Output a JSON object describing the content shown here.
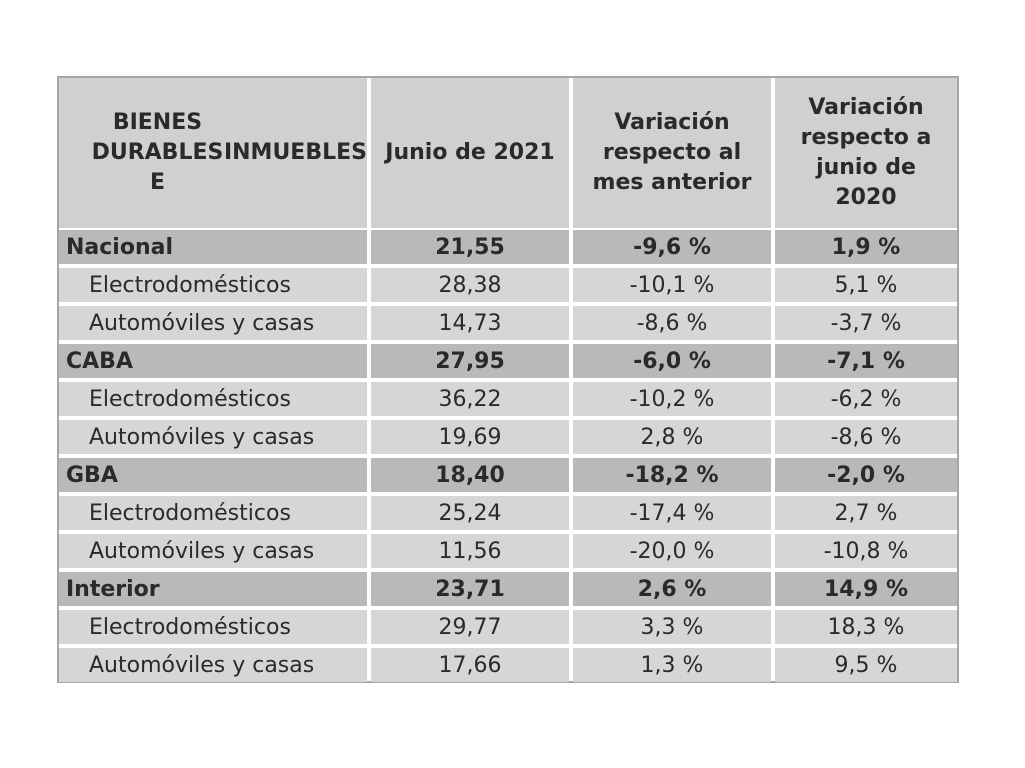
{
  "headers": [
    [
      "BIENES DURABLES E",
      "INMUEBLES"
    ],
    [
      "Junio de 2021"
    ],
    [
      "Variación",
      "respecto al",
      "mes anterior"
    ],
    [
      "Variación",
      "respecto a",
      "junio de",
      "2020"
    ]
  ],
  "rows": [
    {
      "type": "group",
      "cells": [
        "Nacional",
        "21,55",
        "-9,6 %",
        "1,9 %"
      ]
    },
    {
      "type": "sub",
      "cells": [
        "Electrodomésticos",
        "28,38",
        "-10,1 %",
        "5,1 %"
      ]
    },
    {
      "type": "sub",
      "cells": [
        "Automóviles y casas",
        "14,73",
        "-8,6 %",
        "-3,7 %"
      ]
    },
    {
      "type": "group",
      "cells": [
        "CABA",
        "27,95",
        "-6,0 %",
        "-7,1 %"
      ]
    },
    {
      "type": "sub",
      "cells": [
        "Electrodomésticos",
        "36,22",
        "-10,2 %",
        "-6,2 %"
      ]
    },
    {
      "type": "sub",
      "cells": [
        "Automóviles y casas",
        "19,69",
        "2,8 %",
        "-8,6 %"
      ]
    },
    {
      "type": "group",
      "cells": [
        "GBA",
        "18,40",
        "-18,2 %",
        "-2,0 %"
      ]
    },
    {
      "type": "sub",
      "cells": [
        "Electrodomésticos",
        "25,24",
        "-17,4 %",
        "2,7 %"
      ]
    },
    {
      "type": "sub",
      "cells": [
        "Automóviles y casas",
        "11,56",
        "-20,0 %",
        "-10,8 %"
      ]
    },
    {
      "type": "group",
      "cells": [
        "Interior",
        "23,71",
        "2,6 %",
        "14,9 %"
      ]
    },
    {
      "type": "sub",
      "cells": [
        "Electrodomésticos",
        "29,77",
        "3,3 %",
        "18,3 %"
      ]
    },
    {
      "type": "sub",
      "cells": [
        "Automóviles y casas",
        "17,66",
        "1,3 %",
        "9,5 %"
      ]
    }
  ]
}
